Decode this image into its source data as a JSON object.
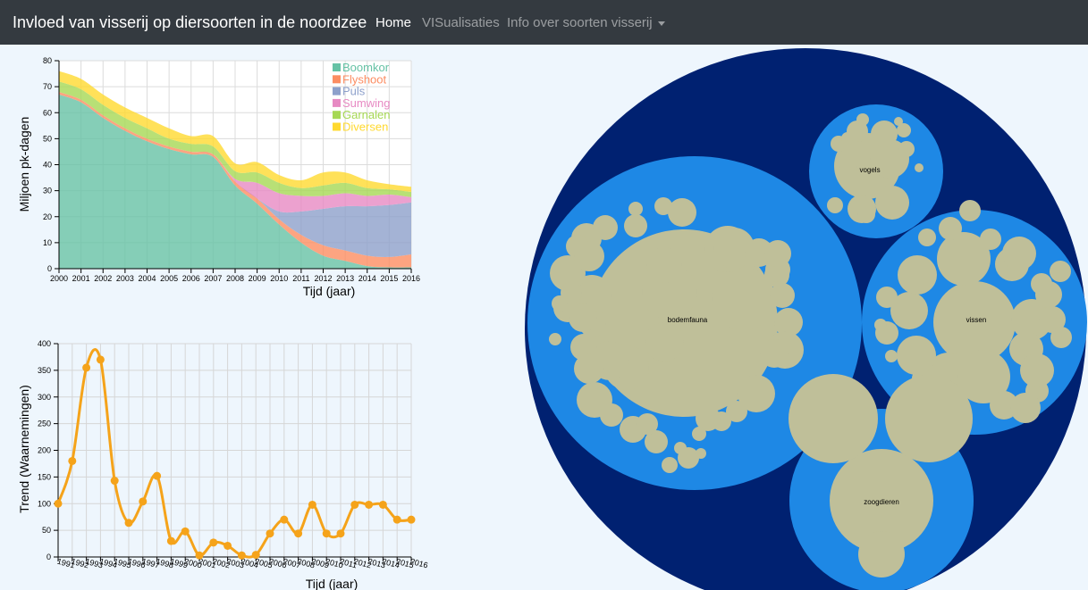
{
  "navbar": {
    "brand": "Invloed van visserij op diersoorten in de noordzee",
    "items": [
      {
        "label": "Home",
        "active": true
      },
      {
        "label": "VISualisaties",
        "active": false
      },
      {
        "label": "Info over soorten visserij",
        "active": false,
        "dropdown": true
      }
    ]
  },
  "chart_data": [
    {
      "type": "area",
      "stacked": true,
      "xlabel": "Tijd (jaar)",
      "ylabel": "Miljoen pk-dagen",
      "ylim": [
        0,
        80
      ],
      "yticks": [
        0,
        10,
        20,
        30,
        40,
        50,
        60,
        70,
        80
      ],
      "x": [
        2000,
        2001,
        2002,
        2003,
        2004,
        2005,
        2006,
        2007,
        2008,
        2009,
        2010,
        2011,
        2012,
        2013,
        2014,
        2015,
        2016
      ],
      "legend_position": "top-right",
      "grid": true,
      "series": [
        {
          "name": "Boomkor",
          "color": "#66c2a5",
          "values": [
            67,
            64,
            58,
            53,
            49,
            46,
            44,
            43,
            32,
            25,
            17,
            10,
            5,
            3,
            1,
            0.5,
            0.5
          ]
        },
        {
          "name": "Flyshoot",
          "color": "#fc8d62",
          "values": [
            1,
            1,
            1,
            1,
            1,
            1,
            1,
            1,
            1.5,
            2,
            2,
            3,
            4,
            4,
            4,
            4,
            5
          ]
        },
        {
          "name": "Puls",
          "color": "#8da0cb",
          "values": [
            0,
            0,
            0,
            0,
            0,
            0,
            0,
            0,
            0,
            0,
            3,
            9,
            14,
            17,
            19,
            20,
            20
          ]
        },
        {
          "name": "Sumwing",
          "color": "#e78ac3",
          "values": [
            0,
            0,
            0,
            0,
            0,
            0,
            0,
            0,
            1,
            6,
            7,
            6,
            5,
            5,
            4,
            4,
            2
          ]
        },
        {
          "name": "Garnalen",
          "color": "#a6d854",
          "values": [
            4,
            4,
            4,
            4,
            4,
            3,
            3,
            3,
            3,
            4,
            4,
            3,
            4,
            4,
            3,
            2,
            2
          ]
        },
        {
          "name": "Diversen",
          "color": "#ffd92f",
          "values": [
            4,
            4,
            4,
            4,
            4,
            4,
            3,
            4,
            3,
            4,
            3,
            3,
            5,
            4,
            3,
            2,
            2
          ]
        }
      ]
    },
    {
      "type": "line",
      "xlabel": "Tijd (jaar)",
      "ylabel": "Trend (Waarnemingen)",
      "ylim": [
        0,
        400
      ],
      "yticks": [
        0,
        50,
        100,
        150,
        200,
        250,
        300,
        350,
        400
      ],
      "color": "#f5a31a",
      "grid": true,
      "x": [
        1991,
        1992,
        1993,
        1994,
        1995,
        1996,
        1997,
        1998,
        1999,
        2000,
        2001,
        2002,
        2003,
        2004,
        2005,
        2006,
        2007,
        2008,
        2009,
        2010,
        2011,
        2012,
        2013,
        2014,
        2015,
        2016
      ],
      "values": [
        100,
        180,
        355,
        370,
        143,
        64,
        104,
        152,
        30,
        48,
        3,
        27,
        21,
        3,
        4,
        44,
        70,
        44,
        98,
        44,
        44,
        98,
        98,
        98,
        70,
        70
      ]
    },
    {
      "type": "circle-packing",
      "groups": [
        {
          "label": "bodemfauna"
        },
        {
          "label": "vogels"
        },
        {
          "label": "vissen"
        },
        {
          "label": "zoogdieren"
        }
      ],
      "colors": {
        "outer": "#002171",
        "group": "#1e88e5",
        "leaf": "#bfbf99"
      }
    }
  ]
}
